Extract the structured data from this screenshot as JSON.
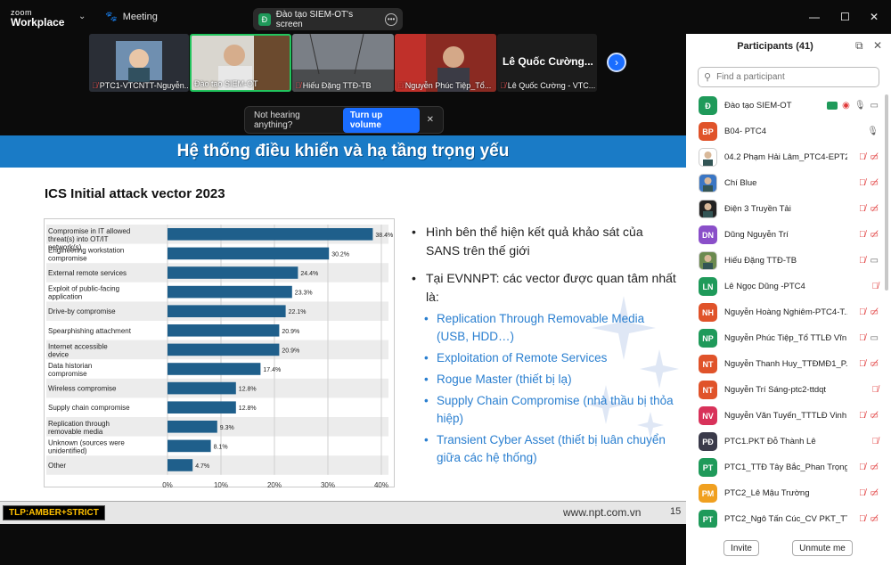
{
  "titlebar": {
    "zoom": "zoom",
    "workplace": "Workplace",
    "meeting_label": "Meeting",
    "share_label": "Đào tạo SIEM-OT's screen",
    "share_badge": "Đ"
  },
  "videos": [
    {
      "label": "PTC1-VTCNTT-Nguyễn..."
    },
    {
      "label": "Đào tạo SIEM-OT"
    },
    {
      "label": "Hiếu Đặng TTĐ-TB"
    },
    {
      "label": "Nguyễn Phúc Tiệp_Tổ..."
    },
    {
      "label": "Lê Quốc Cường - VTC...",
      "big_name": "Lê Quốc Cường..."
    }
  ],
  "notice": {
    "text": "Not hearing anything?",
    "button": "Turn up volume"
  },
  "slide": {
    "banner": "Hệ thống điều khiển và hạ tầng trọng yếu",
    "bullet1": "Hình bên thể hiện kết quả khảo sát của SANS trên thế giới",
    "bullet2": "Tại EVNNPT: các vector được quan tâm nhất là:",
    "subs": [
      "Replication Through Removable Media (USB, HDD…)",
      "Exploitation of Remote Services",
      "Rogue Master (thiết bị lạ)",
      "Supply Chain Compromise (nhà thầu bị thỏa hiệp)",
      "Transient Cyber Asset (thiết bị luân chuyển giữa các hệ thống)"
    ],
    "tlp": "TLP:AMBER+STRICT",
    "site": "www.npt.com.vn",
    "page": "15"
  },
  "chart_data": {
    "type": "bar",
    "orientation": "horizontal",
    "title": "ICS Initial attack vector 2023",
    "categories": [
      "Compromise in IT allowed threat(s) into OT/IT network(s)",
      "Engineering workstation compromise",
      "External remote services",
      "Exploit of public-facing application",
      "Drive-by compromise",
      "Spearphishing attachment",
      "Internet accessible device",
      "Data historian compromise",
      "Wireless compromise",
      "Supply chain compromise",
      "Replication through removable media",
      "Unknown (sources were unidentified)",
      "Other"
    ],
    "values": [
      38.4,
      30.2,
      24.4,
      23.3,
      22.1,
      20.9,
      20.9,
      17.4,
      12.8,
      12.8,
      9.3,
      8.1,
      4.7
    ],
    "value_labels": [
      "38.4%",
      "30.2%",
      "24.4%",
      "23.3%",
      "22.1%",
      "20.9%",
      "20.9%",
      "17.4%",
      "12.8%",
      "12.8%",
      "9.3%",
      "8.1%",
      "4.7%"
    ],
    "xticks": [
      "0%",
      "10%",
      "20%",
      "30%",
      "40%"
    ],
    "xlim": [
      0,
      40
    ],
    "bar_color": "#1f5f8b",
    "grid": true
  },
  "participants": {
    "title": "Participants (41)",
    "search_placeholder": "Find a participant",
    "list": [
      {
        "initials": "Đ",
        "name": "Đào tạo SIEM-OT",
        "color": "#1f9a5a",
        "mic": "on",
        "cam": "share"
      },
      {
        "initials": "BP",
        "name": "B04- PTC4",
        "color": "#e0532a",
        "mic": "on",
        "cam": "none"
      },
      {
        "initials": "",
        "name": "04.2 Phạm Hải Lâm_PTC4-EPT2",
        "color": "#ffffff",
        "mic": "off",
        "cam": "off"
      },
      {
        "initials": "",
        "name": "Chí Blue",
        "color": "#3a76c4",
        "mic": "off",
        "cam": "off"
      },
      {
        "initials": "",
        "name": "Điện 3 Truyền Tải",
        "color": "#222222",
        "mic": "off",
        "cam": "off"
      },
      {
        "initials": "DN",
        "name": "Dũng Nguyễn Trí",
        "color": "#8a4fc9",
        "mic": "off",
        "cam": "off"
      },
      {
        "initials": "",
        "name": "Hiếu Đặng TTĐ-TB",
        "color": "#6b8a4f",
        "mic": "off",
        "cam": "on"
      },
      {
        "initials": "LN",
        "name": "Lê Ngọc Dũng -PTC4",
        "color": "#1f9a5a",
        "mic": "off",
        "cam": "none"
      },
      {
        "initials": "NH",
        "name": "Nguyễn Hoàng Nghiêm-PTC4-T...",
        "color": "#e0532a",
        "mic": "off",
        "cam": "off"
      },
      {
        "initials": "NP",
        "name": "Nguyễn Phúc Tiệp_Tổ TTLĐ Vĩn...",
        "color": "#1f9a5a",
        "mic": "off",
        "cam": "on"
      },
      {
        "initials": "NT",
        "name": "Nguyễn Thanh Huy_TTĐMĐ1_P...",
        "color": "#e0532a",
        "mic": "off",
        "cam": "off"
      },
      {
        "initials": "NT",
        "name": "Nguyễn Trí Sáng-ptc2-ttdqt",
        "color": "#e0532a",
        "mic": "off",
        "cam": "none"
      },
      {
        "initials": "NV",
        "name": "Nguyễn Văn Tuyến_TTTLĐ Vinh ...",
        "color": "#d8325a",
        "mic": "off",
        "cam": "off"
      },
      {
        "initials": "PĐ",
        "name": "PTC1.PKT Đỗ Thành Lê",
        "color": "#3a3a4a",
        "mic": "off",
        "cam": "none"
      },
      {
        "initials": "PT",
        "name": "PTC1_TTĐ Tây Bắc_Phan Trọng Đ...",
        "color": "#1f9a5a",
        "mic": "off",
        "cam": "off"
      },
      {
        "initials": "PM",
        "name": "PTC2_Lê Mậu Trường",
        "color": "#f0a020",
        "mic": "off",
        "cam": "off"
      },
      {
        "initials": "PT",
        "name": "PTC2_Ngô Tấn Cúc_CV PKT_TTĐ...",
        "color": "#1f9a5a",
        "mic": "off",
        "cam": "off"
      }
    ],
    "invite": "Invite",
    "unmute": "Unmute me"
  }
}
